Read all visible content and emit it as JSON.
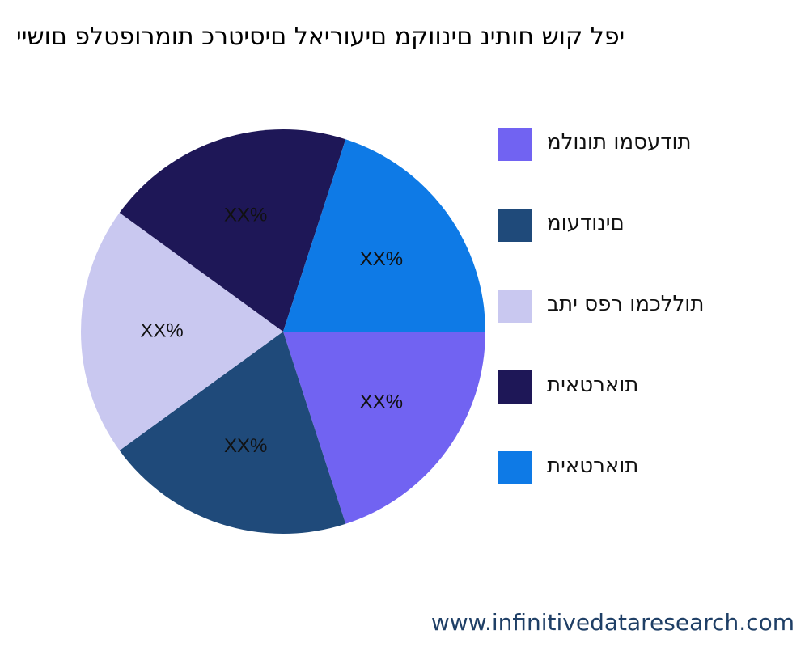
{
  "chart_data": {
    "type": "pie",
    "title": "יפל קוש חותינ םינווקמ םיעוריאל םיסיטרכ תומרופטלפ םושיי",
    "categories": [
      "תודעסמו תונולמ",
      "םינודעומ",
      "תוללכמו רפס יתב",
      "תוארטאית",
      "תוארטאית"
    ],
    "values": [
      20,
      20,
      20,
      20,
      20
    ],
    "slice_labels": [
      "XX%",
      "XX%",
      "XX%",
      "XX%",
      "XX%"
    ],
    "colors": [
      "#7163f2",
      "#1f4a7a",
      "#c9c8f0",
      "#1e1757",
      "#0e7ae6"
    ],
    "legend_position": "right"
  },
  "footer": {
    "url": "www.infinitivedataresearch.com"
  }
}
